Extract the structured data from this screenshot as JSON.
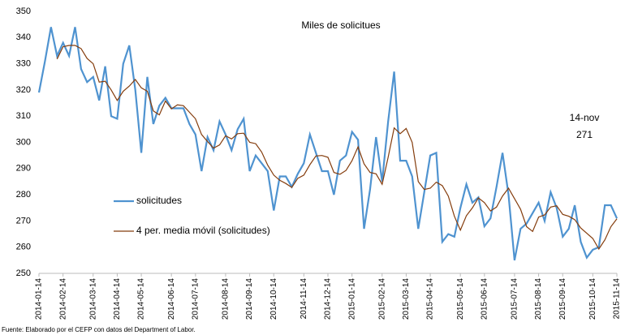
{
  "chart_data": {
    "type": "line",
    "title": "Miles de solicitues",
    "annotations": [
      "14-nov",
      "271"
    ],
    "note": "Fuente: Elaborado por el CEFP con datos del Department of Labor.",
    "categories": [
      "2014-01-14",
      null,
      null,
      null,
      "2014-02-14",
      null,
      null,
      null,
      null,
      "2014-03-14",
      null,
      null,
      null,
      "2014-04-14",
      null,
      null,
      null,
      "2014-05-14",
      null,
      null,
      null,
      null,
      "2014-06-14",
      null,
      null,
      null,
      "2014-07-14",
      null,
      null,
      null,
      null,
      "2014-08-14",
      null,
      null,
      null,
      "2014-09-14",
      null,
      null,
      null,
      "2014-10-14",
      null,
      null,
      null,
      null,
      "2014-11-14",
      null,
      null,
      null,
      "2014-12-14",
      null,
      null,
      null,
      "2015-01-14",
      null,
      null,
      null,
      null,
      "2015-02-14",
      null,
      null,
      null,
      "2015-03-14",
      null,
      null,
      null,
      "2015-04-14",
      null,
      null,
      null,
      null,
      "2015-05-14",
      null,
      null,
      null,
      "2015-06-14",
      null,
      null,
      null,
      null,
      "2015-07-14",
      null,
      null,
      null,
      "2015-08-14",
      null,
      null,
      null,
      "2015-09-14",
      null,
      null,
      null,
      null,
      "2015-10-14",
      null,
      null,
      null,
      "2015-11-14"
    ],
    "series": [
      {
        "name": "solicitudes",
        "color": "#4f93d0",
        "values": [
          319,
          331,
          344,
          333,
          338,
          333,
          344,
          328,
          323,
          325,
          316,
          329,
          310,
          309,
          330,
          337,
          320,
          296,
          325,
          307,
          314,
          317,
          313,
          313,
          313,
          307,
          303,
          289,
          302,
          297,
          308,
          303,
          297,
          305,
          309,
          289,
          295,
          292,
          289,
          274,
          287,
          287,
          283,
          288,
          292,
          303,
          296,
          289,
          289,
          280,
          293,
          295,
          304,
          301,
          267,
          282,
          302,
          285,
          308,
          327,
          293,
          293,
          287,
          267,
          281,
          295,
          296,
          262,
          265,
          264,
          275,
          284,
          277,
          279,
          268,
          271,
          283,
          296,
          280,
          255,
          267,
          269,
          273,
          277,
          270,
          281,
          275,
          264,
          267,
          276,
          262,
          256,
          259,
          260,
          276,
          276,
          271
        ]
      },
      {
        "name": "4 per. media móvil (solicitudes)",
        "color": "#843c0c",
        "values": [
          null,
          null,
          null,
          331.8,
          336.5,
          337,
          337,
          335.8,
          332,
          330,
          323,
          323.3,
          320,
          316,
          319.5,
          321.5,
          324,
          320.8,
          319.5,
          312,
          310.5,
          315.8,
          312.8,
          314.3,
          314,
          311.5,
          309,
          303,
          300.3,
          297.8,
          299,
          302.5,
          301.3,
          303.3,
          303.5,
          300,
          299.5,
          296.3,
          291.3,
          287.5,
          285.5,
          284.3,
          282.8,
          286.3,
          287.5,
          291.5,
          294.8,
          295,
          294.3,
          288.5,
          287.8,
          289.3,
          293,
          298.3,
          291.8,
          288.5,
          288,
          284,
          294.3,
          305.5,
          303.3,
          305.3,
          300,
          285,
          282,
          282.5,
          284.8,
          283.5,
          279.5,
          271.8,
          266.5,
          272,
          275,
          278.8,
          277,
          273.8,
          275.3,
          279.5,
          282.5,
          278.5,
          274.5,
          267.8,
          266,
          271.5,
          272.3,
          275.3,
          275.8,
          272.5,
          271.8,
          270.5,
          267.3,
          265.3,
          263.3,
          259.3,
          262.8,
          267.8,
          270.8
        ]
      }
    ],
    "ylim": [
      250,
      350
    ],
    "yticks": [
      250,
      260,
      270,
      280,
      290,
      300,
      310,
      320,
      330,
      340,
      350
    ],
    "grid": false
  }
}
